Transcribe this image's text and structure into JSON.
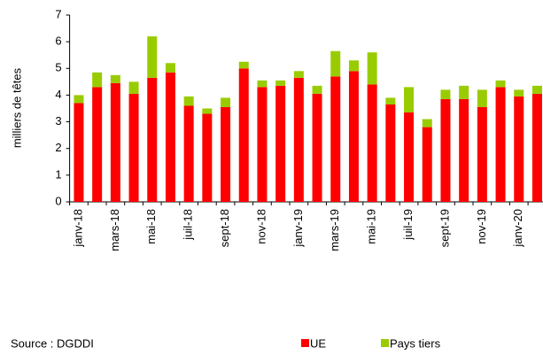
{
  "chart_data": {
    "type": "stacked_bar",
    "y_label": "milliers de têtes",
    "source": "Source : DGDDI",
    "categories": [
      "janv-18",
      null,
      "mars-18",
      null,
      "mai-18",
      null,
      "juil-18",
      null,
      "sept-18",
      null,
      "nov-18",
      null,
      "janv-19",
      null,
      "mars-19",
      null,
      "mai-19",
      null,
      "juil-19",
      null,
      "sept-19",
      null,
      "nov-19",
      null,
      "janv-20",
      null
    ],
    "series": [
      {
        "name": "UE",
        "color": "#ff0000",
        "values": [
          3.7,
          4.3,
          4.45,
          4.05,
          4.65,
          4.85,
          3.6,
          3.3,
          3.55,
          5.0,
          4.3,
          4.35,
          4.65,
          4.05,
          4.7,
          4.9,
          4.4,
          3.65,
          3.35,
          2.8,
          3.85,
          3.85,
          3.55,
          4.3,
          3.95,
          4.05
        ]
      },
      {
        "name": "Pays tiers",
        "color": "#99cc00",
        "values": [
          0.3,
          0.55,
          0.3,
          0.45,
          1.55,
          0.35,
          0.35,
          0.2,
          0.35,
          0.25,
          0.25,
          0.2,
          0.25,
          0.3,
          0.95,
          0.4,
          1.2,
          0.25,
          0.95,
          0.3,
          0.35,
          0.5,
          0.65,
          0.25,
          0.25,
          0.3
        ]
      }
    ],
    "ylim": [
      0,
      7
    ],
    "yticks": [
      0,
      1,
      2,
      3,
      4,
      5,
      6,
      7
    ],
    "grid": false
  }
}
